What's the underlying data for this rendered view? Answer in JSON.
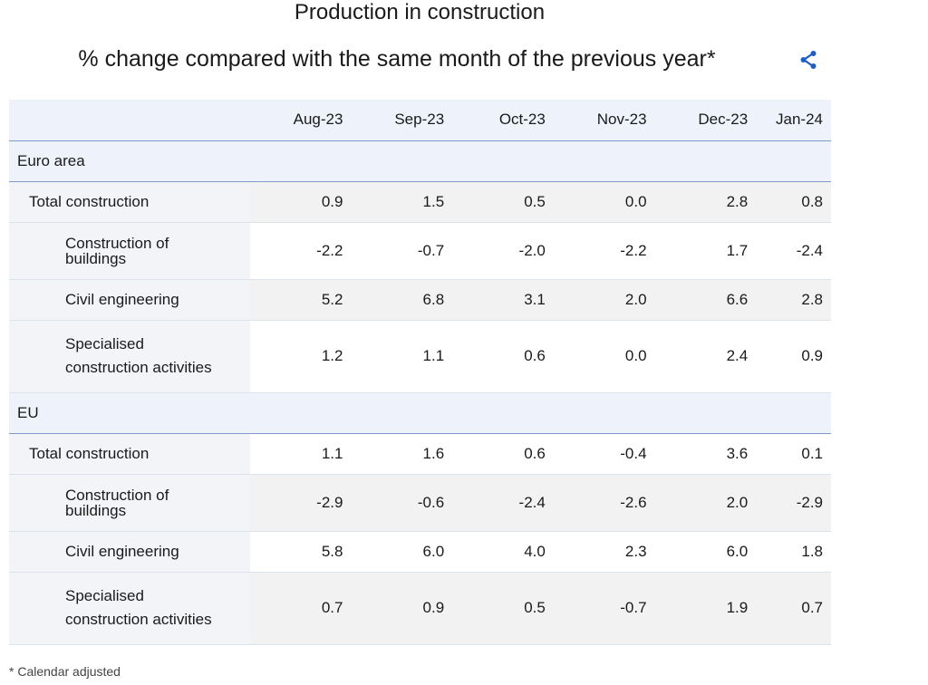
{
  "title": "Production in construction",
  "subtitle": "% change compared with the same month of the previous year*",
  "share_icon": "share-icon",
  "accent_color": "#1f5fc4",
  "columns": [
    "Aug-23",
    "Sep-23",
    "Oct-23",
    "Nov-23",
    "Dec-23",
    "Jan-24"
  ],
  "groups": [
    {
      "name": "Euro area",
      "rows": [
        {
          "label": "Total construction",
          "values": [
            "0.9",
            "1.5",
            "0.5",
            "0.0",
            "2.8",
            "0.8"
          ]
        },
        {
          "label_line1": "Construction of",
          "label_line2": "buildings",
          "values": [
            "-2.2",
            "-0.7",
            "-2.0",
            "-2.2",
            "1.7",
            "-2.4"
          ]
        },
        {
          "label": "Civil engineering",
          "values": [
            "5.2",
            "6.8",
            "3.1",
            "2.0",
            "6.6",
            "2.8"
          ]
        },
        {
          "label_line1": "Specialised",
          "label_line2": "construction activities",
          "values": [
            "1.2",
            "1.1",
            "0.6",
            "0.0",
            "2.4",
            "0.9"
          ]
        }
      ]
    },
    {
      "name": "EU",
      "rows": [
        {
          "label": "Total construction",
          "values": [
            "1.1",
            "1.6",
            "0.6",
            "-0.4",
            "3.6",
            "0.1"
          ]
        },
        {
          "label_line1": "Construction of",
          "label_line2": "buildings",
          "values": [
            "-2.9",
            "-0.6",
            "-2.4",
            "-2.6",
            "2.0",
            "-2.9"
          ]
        },
        {
          "label": "Civil engineering",
          "values": [
            "5.8",
            "6.0",
            "4.0",
            "2.3",
            "6.0",
            "1.8"
          ]
        },
        {
          "label_line1": "Specialised",
          "label_line2": "construction activities",
          "values": [
            "0.7",
            "0.9",
            "0.5",
            "-0.7",
            "1.9",
            "0.7"
          ]
        }
      ]
    }
  ],
  "footnote": "* Calendar adjusted"
}
